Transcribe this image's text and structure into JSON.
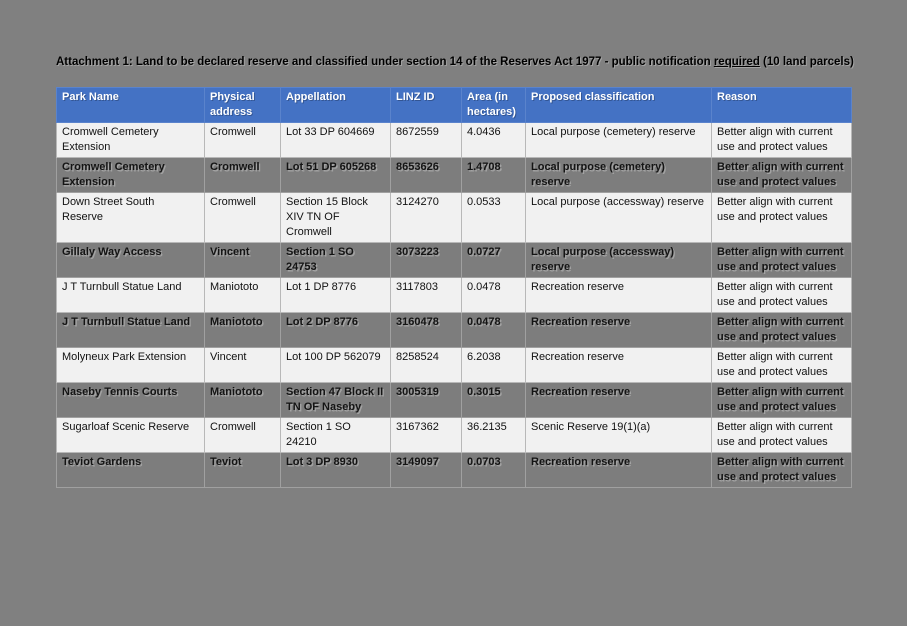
{
  "page": {
    "background_color": "#808080",
    "header_color": "#4472C4",
    "row_light_color": "#F1F1F1",
    "row_shaded_color": "#7D7D7D"
  },
  "title": {
    "prefix": "Attachment 1: Land to be declared reserve and classified under section 14 of the Reserves Act 1977 - public notification ",
    "underlined": "required",
    "suffix": " (10 land parcels)"
  },
  "table": {
    "columns": [
      "Park Name",
      "Physical address",
      "Appellation",
      "LINZ ID",
      "Area (in hectares)",
      "Proposed classification",
      "Reason"
    ],
    "rows": [
      {
        "shaded": false,
        "cells": [
          "Cromwell Cemetery Extension",
          "Cromwell",
          "Lot 33 DP 604669",
          "8672559",
          "4.0436",
          "Local purpose (cemetery) reserve",
          "Better align with current use and protect values"
        ]
      },
      {
        "shaded": true,
        "cells": [
          "Cromwell Cemetery Extension",
          "Cromwell",
          "Lot 51 DP 605268",
          "8653626",
          "1.4708",
          "Local purpose (cemetery) reserve",
          "Better align with current use and protect values"
        ]
      },
      {
        "shaded": false,
        "cells": [
          "Down Street South Reserve",
          "Cromwell",
          "Section 15 Block XIV TN OF Cromwell",
          "3124270",
          "0.0533",
          "Local purpose (accessway) reserve",
          "Better align with current use and protect values"
        ]
      },
      {
        "shaded": true,
        "cells": [
          "Gillaly Way Access",
          "Vincent",
          "Section 1 SO 24753",
          "3073223",
          "0.0727",
          "Local purpose (accessway) reserve",
          "Better align with current use and protect values"
        ]
      },
      {
        "shaded": false,
        "cells": [
          "J T Turnbull Statue Land",
          "Maniototo",
          "Lot 1 DP 8776",
          "3117803",
          "0.0478",
          "Recreation reserve",
          "Better align with current use and protect values"
        ]
      },
      {
        "shaded": true,
        "cells": [
          "J T Turnbull Statue Land",
          "Maniototo",
          "Lot 2 DP 8776",
          "3160478",
          "0.0478",
          "Recreation reserve",
          "Better align with current use and protect values"
        ]
      },
      {
        "shaded": false,
        "cells": [
          "Molyneux Park Extension",
          "Vincent",
          "Lot 100 DP 562079",
          "8258524",
          "6.2038",
          "Recreation reserve",
          "Better align with current use and protect values"
        ]
      },
      {
        "shaded": true,
        "cells": [
          "Naseby Tennis Courts",
          "Maniototo",
          "Section 47 Block II TN OF Naseby",
          "3005319",
          "0.3015",
          "Recreation reserve",
          "Better align with current use and protect values"
        ]
      },
      {
        "shaded": false,
        "cells": [
          "Sugarloaf Scenic Reserve",
          "Cromwell",
          "Section 1 SO 24210",
          "3167362",
          "36.2135",
          "Scenic Reserve 19(1)(a)",
          "Better align with current use and protect values"
        ]
      },
      {
        "shaded": true,
        "cells": [
          "Teviot Gardens",
          "Teviot",
          "Lot 3 DP 8930",
          "3149097",
          "0.0703",
          "Recreation reserve",
          "Better align with current use and protect values"
        ]
      }
    ]
  }
}
